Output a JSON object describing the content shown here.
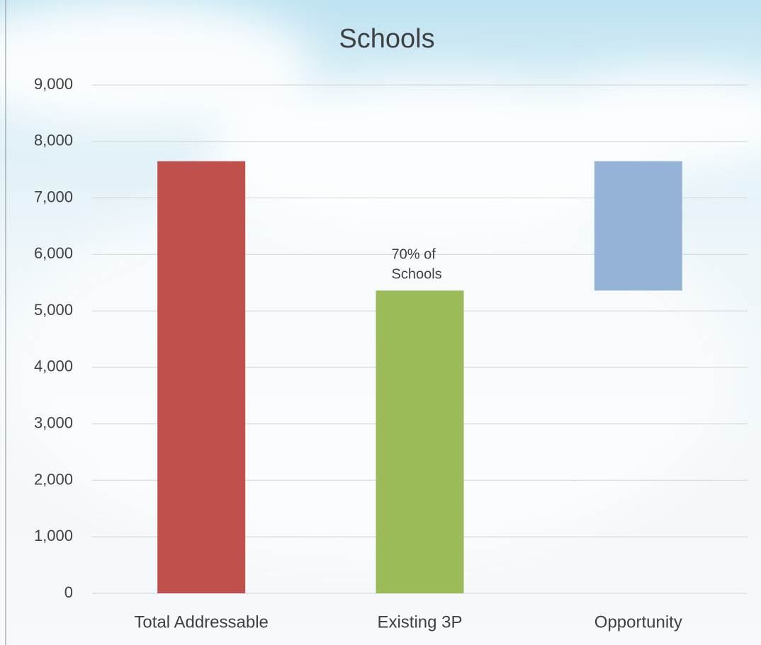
{
  "chart_data": {
    "type": "waterfall",
    "title": "Schools",
    "categories": [
      "Total Addressable",
      "Existing 3P",
      "Opportunity"
    ],
    "values": [
      7650,
      5360,
      2290
    ],
    "colors": [
      "#c0504d",
      "#9bbb59",
      "#95b3d7"
    ],
    "annotation": [
      "70% of",
      "Schools"
    ],
    "ylim": [
      0,
      9000
    ],
    "yticks": [
      0,
      {
        "value": 1000,
        "label": "1,000"
      },
      {
        "value": 2000,
        "label": "2,000"
      },
      {
        "value": 3000,
        "label": "3,000"
      },
      {
        "value": 4000,
        "label": "4,000"
      },
      {
        "value": 5000,
        "label": "5,000"
      },
      {
        "value": 6000,
        "label": "6,000"
      },
      {
        "value": 7000,
        "label": "7,000"
      },
      {
        "value": 8000,
        "label": "8,000"
      },
      {
        "value": 9000,
        "label": "9,000"
      }
    ],
    "grid": true
  }
}
